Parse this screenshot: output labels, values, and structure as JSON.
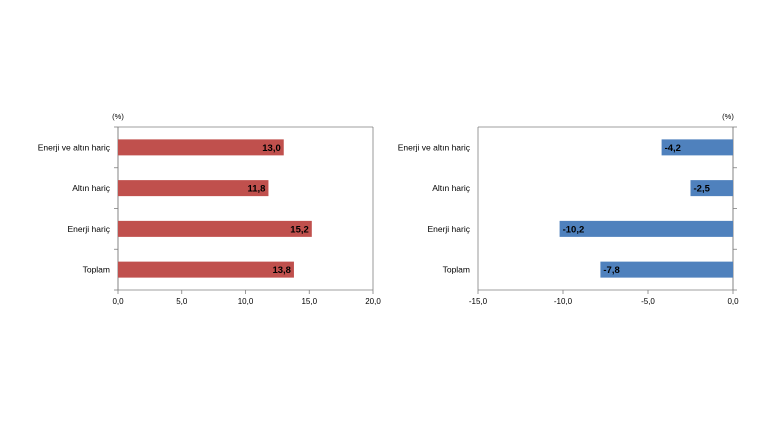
{
  "chart_data": [
    {
      "type": "bar",
      "orientation": "horizontal",
      "unit": "(%)",
      "categories": [
        "Enerji ve altın hariç",
        "Altın hariç",
        "Enerji hariç",
        "Toplam"
      ],
      "values": [
        13.0,
        11.8,
        15.2,
        13.8
      ],
      "value_labels": [
        "13,0",
        "11,8",
        "15,2",
        "13,8"
      ],
      "xlim": [
        0,
        20
      ],
      "ticks": [
        0,
        5,
        10,
        15,
        20
      ],
      "tick_labels": [
        "0,0",
        "5,0",
        "10,0",
        "15,0",
        "20,0"
      ],
      "color": "#C0504D",
      "grid": false
    },
    {
      "type": "bar",
      "orientation": "horizontal",
      "unit": "(%)",
      "categories": [
        "Enerji ve altın hariç",
        "Altın hariç",
        "Enerji hariç",
        "Toplam"
      ],
      "values": [
        -4.2,
        -2.5,
        -10.2,
        -7.8
      ],
      "value_labels": [
        "-4,2",
        "-2,5",
        "-10,2",
        "-7,8"
      ],
      "xlim": [
        -15,
        0
      ],
      "ticks": [
        -15,
        -10,
        -5,
        0
      ],
      "tick_labels": [
        "-15,0",
        "-10,0",
        "-5,0",
        "0,0"
      ],
      "color": "#4F81BD",
      "grid": false
    }
  ]
}
